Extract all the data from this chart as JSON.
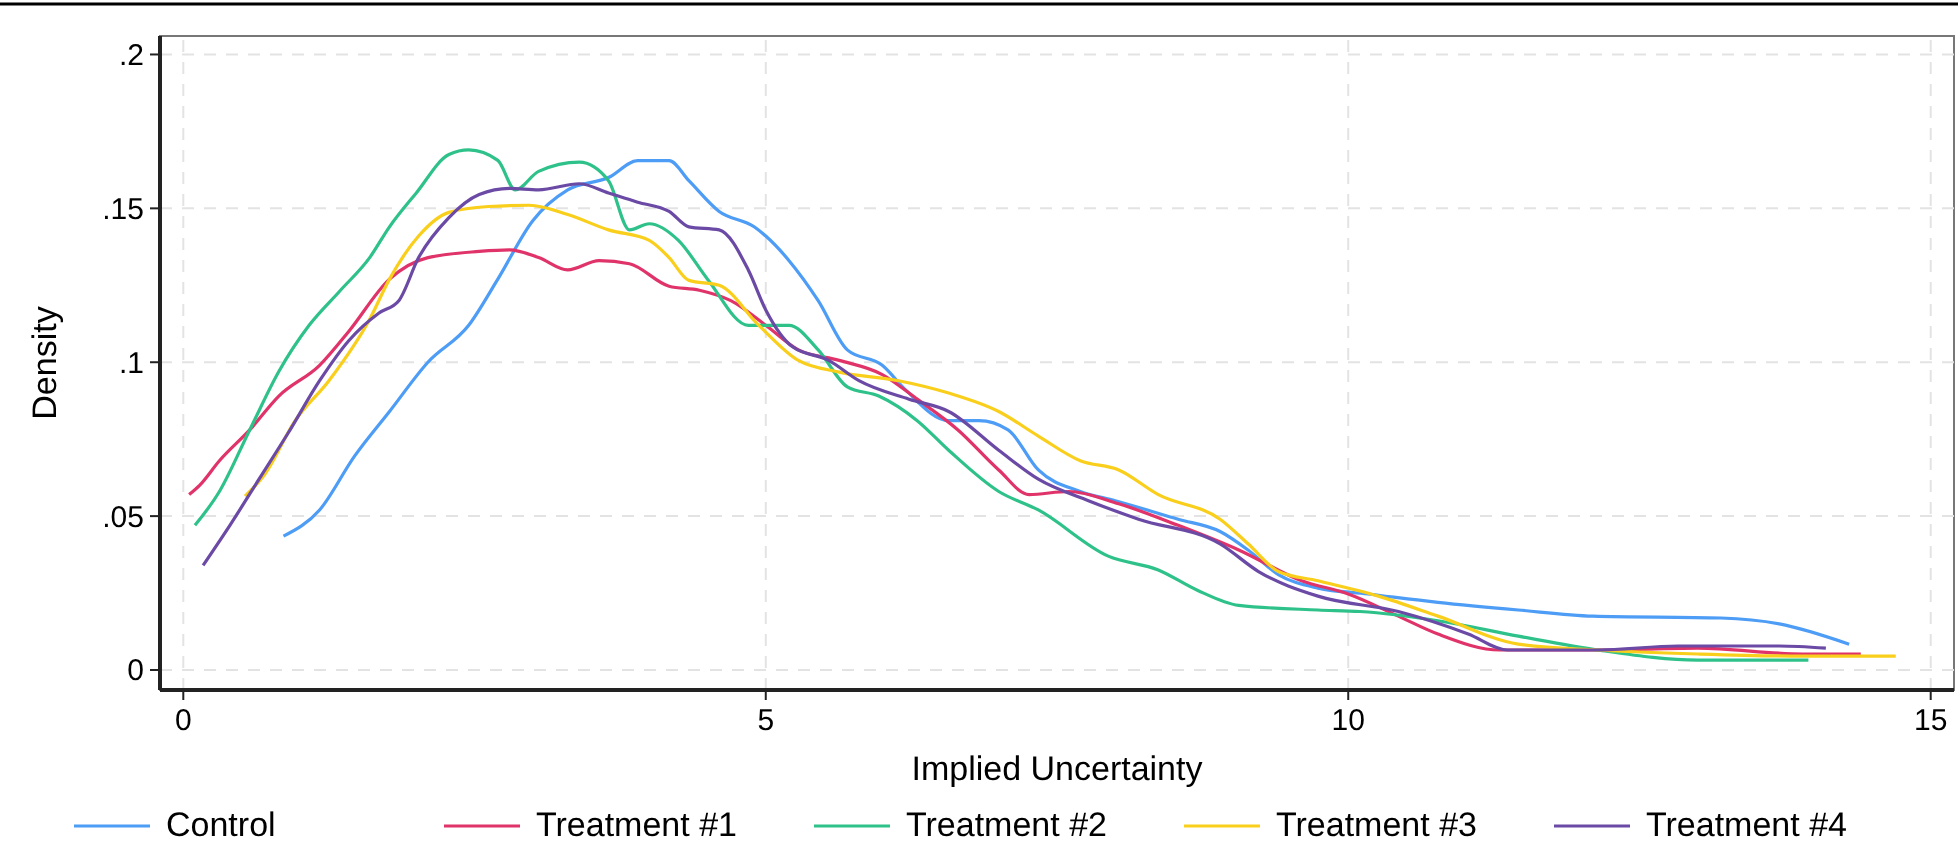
{
  "chart_data": {
    "type": "line",
    "xlabel": "Implied Uncertainty",
    "ylabel": "Density",
    "xlim": [
      -0.2,
      15.2
    ],
    "ylim": [
      -0.0065,
      0.206
    ],
    "xticks": [
      0,
      5,
      10,
      15
    ],
    "yticks": [
      0,
      {
        "value": 0.05,
        "label": ".05"
      },
      {
        "value": 0.1,
        "label": ".1"
      },
      {
        "value": 0.15,
        "label": ".15"
      },
      {
        "value": 0.2,
        "label": ".2"
      }
    ],
    "grid": true,
    "legend": "bottom",
    "line_style": "solid",
    "marker": "none",
    "series": [
      {
        "name": "Control",
        "color": "#4d9cf5",
        "x": [
          0.86,
          1.17,
          1.47,
          1.77,
          2.1,
          2.45,
          2.7,
          3.0,
          3.3,
          3.65,
          3.9,
          4.17,
          4.34,
          4.6,
          4.9,
          5.0,
          5.2,
          5.45,
          5.7,
          6.0,
          6.2,
          6.57,
          6.83,
          7.08,
          7.34,
          7.7,
          8.0,
          8.54,
          8.9,
          9.14,
          9.4,
          9.74,
          10.17,
          10.77,
          11.46,
          12.1,
          13.2,
          13.7,
          14.3
        ],
        "values": [
          0.0435,
          0.052,
          0.0695,
          0.084,
          0.1,
          0.112,
          0.127,
          0.146,
          0.156,
          0.16,
          0.1655,
          0.1655,
          0.159,
          0.149,
          0.144,
          0.141,
          0.133,
          0.12,
          0.104,
          0.099,
          0.091,
          0.081,
          0.081,
          0.078,
          0.065,
          0.058,
          0.055,
          0.049,
          0.045,
          0.039,
          0.031,
          0.0266,
          0.0247,
          0.022,
          0.0195,
          0.0175,
          0.0169,
          0.015,
          0.0084
        ]
      },
      {
        "name": "Treatment #1",
        "color": "#e0336a",
        "x": [
          0.05,
          0.14,
          0.31,
          0.57,
          0.82,
          1.17,
          1.42,
          1.77,
          2.1,
          2.54,
          2.8,
          3.05,
          3.3,
          3.57,
          3.83,
          4.17,
          4.43,
          4.7,
          5.0,
          5.28,
          5.63,
          6.0,
          6.3,
          6.65,
          7.0,
          7.26,
          7.6,
          8.03,
          8.54,
          9.06,
          9.6,
          10.0,
          10.43,
          10.77,
          11.3,
          12.14,
          13.0,
          13.9,
          14.4
        ],
        "values": [
          0.057,
          0.06,
          0.068,
          0.078,
          0.089,
          0.099,
          0.11,
          0.127,
          0.134,
          0.136,
          0.1365,
          0.134,
          0.13,
          0.133,
          0.132,
          0.1247,
          0.1234,
          0.12,
          0.112,
          0.104,
          0.1006,
          0.096,
          0.088,
          0.078,
          0.065,
          0.057,
          0.058,
          0.054,
          0.047,
          0.039,
          0.029,
          0.0247,
          0.0175,
          0.0117,
          0.0065,
          0.0065,
          0.0071,
          0.0052,
          0.0052
        ]
      },
      {
        "name": "Treatment #2",
        "color": "#2ec28a",
        "x": [
          0.1,
          0.31,
          0.57,
          0.82,
          1.08,
          1.34,
          1.6,
          1.77,
          2.0,
          2.28,
          2.45,
          2.7,
          2.85,
          3.05,
          3.4,
          3.65,
          3.83,
          4.0,
          4.25,
          4.5,
          4.85,
          5.2,
          5.45,
          5.7,
          5.97,
          6.3,
          6.57,
          7.0,
          7.34,
          7.94,
          8.37,
          8.7,
          9.06,
          9.74,
          10.1,
          10.77,
          11.46,
          12.14,
          13.0,
          13.95
        ],
        "values": [
          0.047,
          0.058,
          0.078,
          0.097,
          0.112,
          0.123,
          0.134,
          0.144,
          0.155,
          0.1675,
          0.169,
          0.1656,
          0.156,
          0.162,
          0.165,
          0.159,
          0.143,
          0.145,
          0.1396,
          0.127,
          0.112,
          0.112,
          0.104,
          0.092,
          0.089,
          0.081,
          0.0714,
          0.058,
          0.052,
          0.037,
          0.0325,
          0.026,
          0.021,
          0.0195,
          0.019,
          0.016,
          0.011,
          0.0065,
          0.0032,
          0.0032
        ]
      },
      {
        "name": "Treatment #3",
        "color": "#f9cf1c",
        "x": [
          0.53,
          0.7,
          0.96,
          1.25,
          1.6,
          1.77,
          2.02,
          2.28,
          2.62,
          2.97,
          3.3,
          3.65,
          4.0,
          4.17,
          4.34,
          4.6,
          4.94,
          5.28,
          5.63,
          6.14,
          6.57,
          7.0,
          7.34,
          7.7,
          8.03,
          8.37,
          8.9,
          9.14,
          9.4,
          9.74,
          10.26,
          10.77,
          11.46,
          12.14,
          13.0,
          13.9,
          14.7
        ],
        "values": [
          0.0565,
          0.0636,
          0.081,
          0.094,
          0.114,
          0.127,
          0.141,
          0.1487,
          0.1506,
          0.151,
          0.148,
          0.143,
          0.1396,
          0.134,
          0.1266,
          0.125,
          0.112,
          0.1006,
          0.0968,
          0.094,
          0.09,
          0.084,
          0.076,
          0.068,
          0.065,
          0.057,
          0.049,
          0.041,
          0.032,
          0.029,
          0.024,
          0.0175,
          0.0084,
          0.0065,
          0.0052,
          0.0045,
          0.0045
        ]
      },
      {
        "name": "Treatment #4",
        "color": "#6b4aa6",
        "x": [
          0.17,
          0.4,
          0.65,
          0.9,
          1.17,
          1.42,
          1.68,
          1.85,
          2.02,
          2.28,
          2.54,
          2.8,
          3.05,
          3.4,
          3.65,
          3.9,
          4.17,
          4.34,
          4.6,
          4.85,
          5.0,
          5.23,
          5.54,
          5.8,
          6.23,
          6.57,
          7.0,
          7.34,
          7.77,
          8.2,
          8.9,
          9.23,
          9.74,
          10.43,
          11.03,
          11.37,
          12.14,
          12.83,
          13.7,
          14.1
        ],
        "values": [
          0.034,
          0.047,
          0.062,
          0.077,
          0.094,
          0.107,
          0.116,
          0.12,
          0.134,
          0.147,
          0.1545,
          0.1565,
          0.156,
          0.158,
          0.155,
          0.152,
          0.149,
          0.144,
          0.143,
          0.13,
          0.117,
          0.105,
          0.1006,
          0.094,
          0.088,
          0.084,
          0.0714,
          0.062,
          0.055,
          0.049,
          0.041,
          0.032,
          0.024,
          0.019,
          0.0117,
          0.0065,
          0.0065,
          0.0078,
          0.0078,
          0.0071
        ]
      }
    ]
  }
}
